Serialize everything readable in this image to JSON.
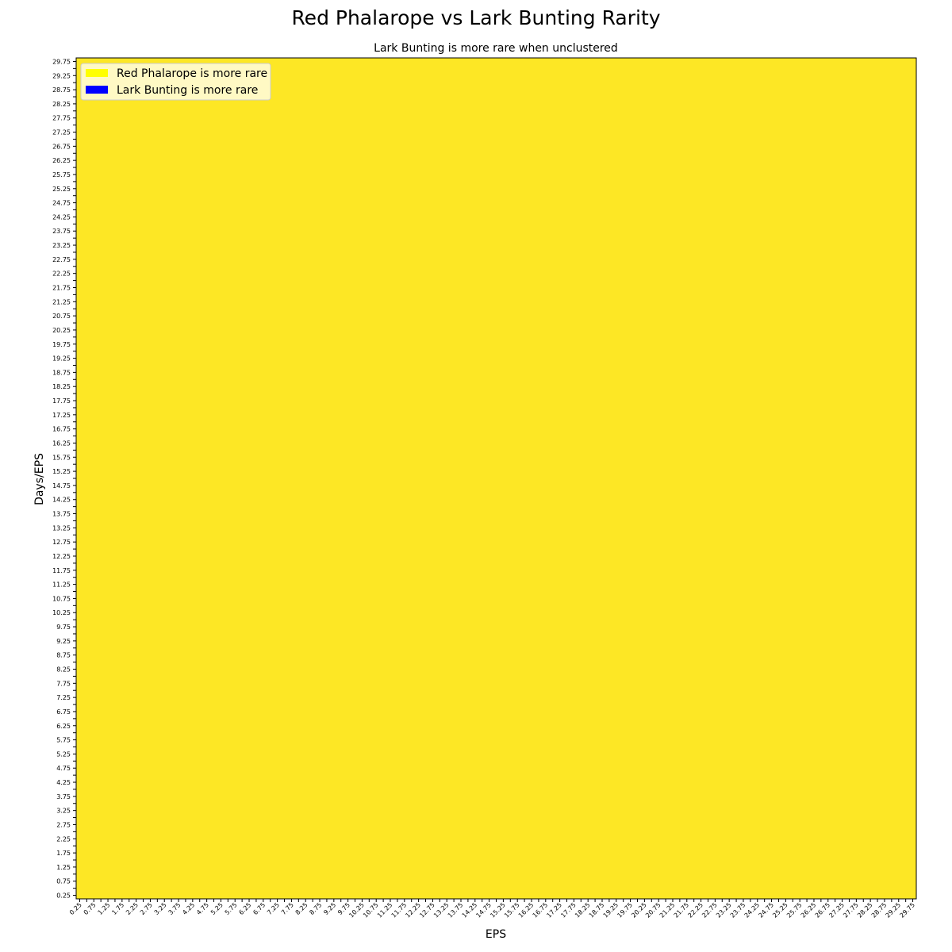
{
  "chart_data": {
    "type": "heatmap",
    "title": "Red Phalarope vs Lark Bunting Rarity",
    "subtitle": "Lark Bunting is more rare when unclustered",
    "xlabel": "EPS",
    "ylabel": "Days/EPS",
    "x_start": 0.25,
    "x_end": 29.75,
    "y_start": 0.25,
    "y_end": 29.75,
    "step": 0.25,
    "label_every": 0.5,
    "cell_value": "Red Phalarope is more rare",
    "legend": {
      "placement": "top-left",
      "entries": [
        {
          "label": "Red Phalarope is more rare",
          "color": "#ffff00"
        },
        {
          "label": "Lark Bunting is more rare",
          "color": "#0000ff"
        }
      ]
    },
    "fill_color": "#fde725"
  }
}
